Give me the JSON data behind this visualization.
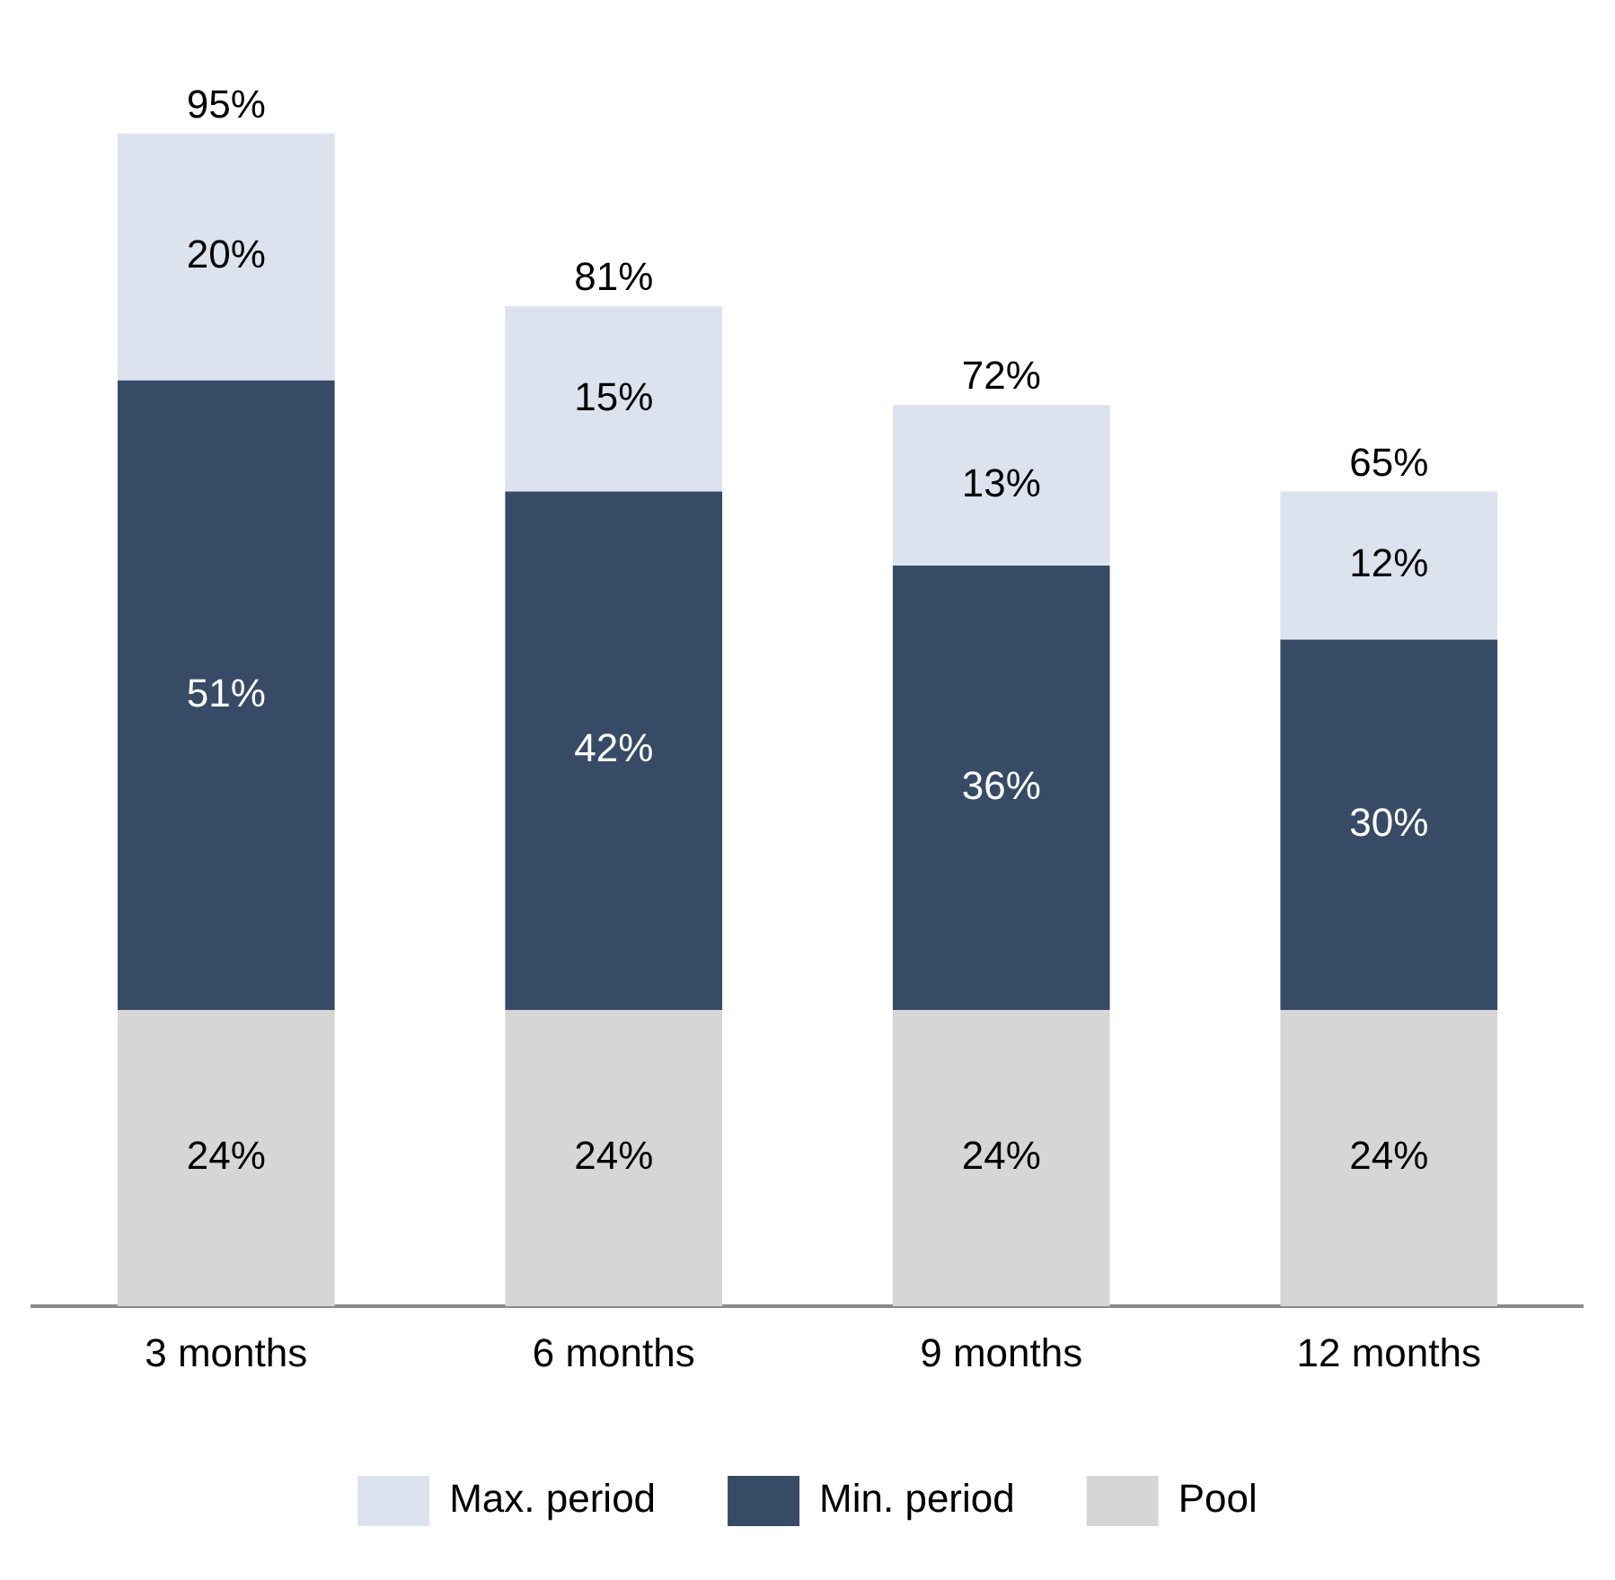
{
  "chart_data": {
    "type": "bar",
    "stacked": true,
    "categories": [
      "3 months",
      "6 months",
      "9 months",
      "12 months"
    ],
    "series": [
      {
        "name": "Pool",
        "color": "#d6d6d6",
        "values": [
          24,
          24,
          24,
          24
        ],
        "value_labels": [
          "24%",
          "24%",
          "24%",
          "24%"
        ]
      },
      {
        "name": "Min. period",
        "color": "#374b66",
        "values": [
          51,
          42,
          36,
          30
        ],
        "value_labels": [
          "51%",
          "42%",
          "36%",
          "30%"
        ]
      },
      {
        "name": "Max. period",
        "color": "#dce3ee",
        "values": [
          20,
          15,
          13,
          12
        ],
        "value_labels": [
          "20%",
          "15%",
          "13%",
          "12%"
        ]
      }
    ],
    "totals": [
      "95%",
      "81%",
      "72%",
      "65%"
    ],
    "legend": "bottom",
    "grid": false
  }
}
